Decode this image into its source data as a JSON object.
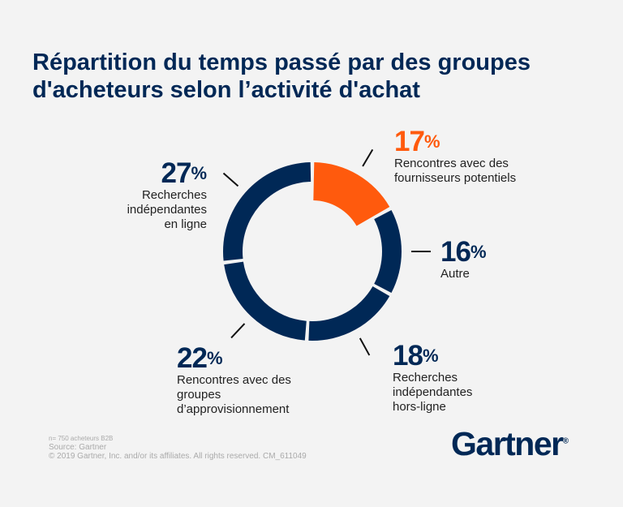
{
  "title": "Répartition du temps passé par des groupes d'acheteurs selon l’activité d'achat",
  "chart_data": {
    "type": "pie",
    "donut": true,
    "title": "Répartition du temps passé par des groupes d'acheteurs selon l’activité d'achat",
    "percent_sign": "%",
    "slices": [
      {
        "label": "Rencontres avec des fournisseurs potentiels",
        "value": 17,
        "color": "#ff5a0d"
      },
      {
        "label": "Autre",
        "value": 16,
        "color": "#002856"
      },
      {
        "label": "Recherches indépendantes hors-ligne",
        "value": 18,
        "color": "#002856"
      },
      {
        "label": "Rencontres avec des groupes d’approvisionnement",
        "value": 22,
        "color": "#002856"
      },
      {
        "label": "Recherches indépendantes en ligne",
        "value": 27,
        "color": "#002856"
      }
    ]
  },
  "footer": {
    "sample": "n= 750 acheteurs B2B",
    "source": "Source: Gartner",
    "copyright": "© 2019 Gartner, Inc. and/or its affiliates. All rights reserved. CM_611049"
  },
  "logo": "Gartner"
}
